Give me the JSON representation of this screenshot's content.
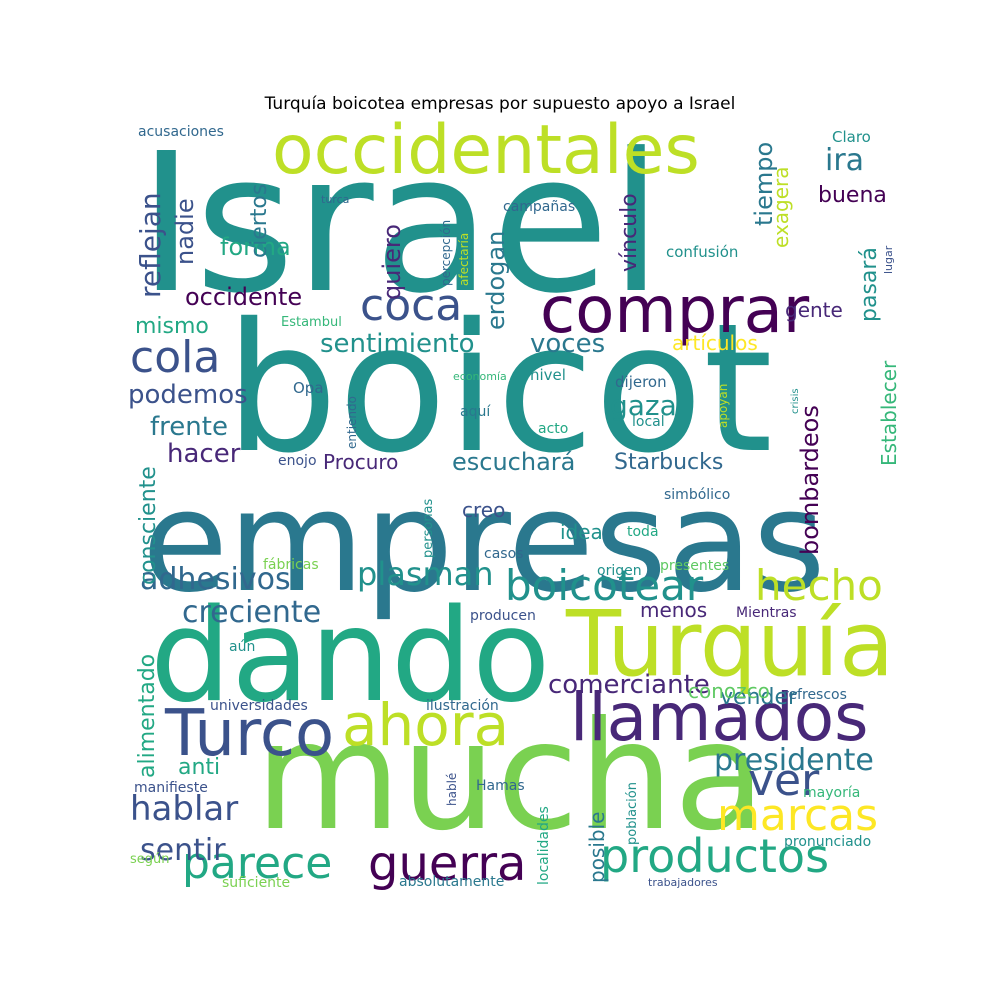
{
  "title": "Turquía boicotea empresas por supuesto apoyo a Israel",
  "palette": {
    "teal": "#21918c",
    "teal_dark": "#2a788e",
    "green": "#22a884",
    "green_light": "#7ad151",
    "lime": "#bddf26",
    "yellow": "#fde725",
    "purple": "#440154",
    "indigo": "#3b528b",
    "blue": "#31688e",
    "violet": "#482878",
    "mint": "#5ec962",
    "seafoam": "#35b779"
  },
  "words": [
    {
      "text": "Israel",
      "color": "teal",
      "vertical": false
    },
    {
      "text": "boicot",
      "color": "teal",
      "vertical": false
    },
    {
      "text": "empresas",
      "color": "teal_dark",
      "vertical": false
    },
    {
      "text": "mucha",
      "color": "green_light",
      "vertical": false
    },
    {
      "text": "dando",
      "color": "green",
      "vertical": false
    },
    {
      "text": "Turquía",
      "color": "lime",
      "vertical": false
    },
    {
      "text": "occidentales",
      "color": "lime",
      "vertical": false
    },
    {
      "text": "comprar",
      "color": "purple",
      "vertical": false
    },
    {
      "text": "llamados",
      "color": "violet",
      "vertical": false
    },
    {
      "text": "Turco",
      "color": "indigo",
      "vertical": false
    },
    {
      "text": "ahora",
      "color": "lime",
      "vertical": false
    },
    {
      "text": "productos",
      "color": "green",
      "vertical": false
    },
    {
      "text": "guerra",
      "color": "purple",
      "vertical": false
    },
    {
      "text": "parece",
      "color": "green",
      "vertical": false
    },
    {
      "text": "boicotear",
      "color": "teal",
      "vertical": false
    },
    {
      "text": "hecho",
      "color": "lime",
      "vertical": false
    },
    {
      "text": "coca",
      "color": "indigo",
      "vertical": false
    },
    {
      "text": "cola",
      "color": "indigo",
      "vertical": false
    },
    {
      "text": "marcas",
      "color": "yellow",
      "vertical": false
    },
    {
      "text": "ver",
      "color": "indigo",
      "vertical": false
    },
    {
      "text": "hablar",
      "color": "indigo",
      "vertical": false
    },
    {
      "text": "sentir",
      "color": "indigo",
      "vertical": false
    },
    {
      "text": "plasman",
      "color": "teal",
      "vertical": false
    },
    {
      "text": "adhesivos",
      "color": "blue",
      "vertical": false
    },
    {
      "text": "creciente",
      "color": "blue",
      "vertical": false
    },
    {
      "text": "presidente",
      "color": "teal_dark",
      "vertical": false
    },
    {
      "text": "comerciante",
      "color": "violet",
      "vertical": false
    },
    {
      "text": "sentimiento",
      "color": "teal",
      "vertical": false
    },
    {
      "text": "voces",
      "color": "teal_dark",
      "vertical": false
    },
    {
      "text": "gaza",
      "color": "teal",
      "vertical": false
    },
    {
      "text": "podemos",
      "color": "indigo",
      "vertical": false
    },
    {
      "text": "frente",
      "color": "teal_dark",
      "vertical": false
    },
    {
      "text": "hacer",
      "color": "violet",
      "vertical": false
    },
    {
      "text": "occidente",
      "color": "purple",
      "vertical": false
    },
    {
      "text": "mismo",
      "color": "green",
      "vertical": false
    },
    {
      "text": "forma",
      "color": "green",
      "vertical": false
    },
    {
      "text": "ira",
      "color": "teal_dark",
      "vertical": false
    },
    {
      "text": "buena",
      "color": "purple",
      "vertical": false
    },
    {
      "text": "escuchará",
      "color": "teal_dark",
      "vertical": false
    },
    {
      "text": "Starbucks",
      "color": "blue",
      "vertical": false
    },
    {
      "text": "Procuro",
      "color": "violet",
      "vertical": false
    },
    {
      "text": "artículos",
      "color": "yellow",
      "vertical": false
    },
    {
      "text": "anti",
      "color": "green",
      "vertical": false
    },
    {
      "text": "vender",
      "color": "teal_dark",
      "vertical": false
    },
    {
      "text": "conozco",
      "color": "mint",
      "vertical": false
    },
    {
      "text": "menos",
      "color": "violet",
      "vertical": false
    },
    {
      "text": "idea",
      "color": "teal",
      "vertical": false
    },
    {
      "text": "creo",
      "color": "indigo",
      "vertical": false
    },
    {
      "text": "gente",
      "color": "violet",
      "vertical": false
    },
    {
      "text": "acusaciones",
      "color": "blue",
      "vertical": false
    },
    {
      "text": "Claro",
      "color": "teal",
      "vertical": false
    },
    {
      "text": "turca",
      "color": "blue",
      "vertical": false
    },
    {
      "text": "campañas",
      "color": "blue",
      "vertical": false
    },
    {
      "text": "confusión",
      "color": "teal",
      "vertical": false
    },
    {
      "text": "Estambul",
      "color": "seafoam",
      "vertical": false
    },
    {
      "text": "economía",
      "color": "seafoam",
      "vertical": false
    },
    {
      "text": "nivel",
      "color": "teal",
      "vertical": false
    },
    {
      "text": "dijeron",
      "color": "blue",
      "vertical": false
    },
    {
      "text": "Opa",
      "color": "blue",
      "vertical": false
    },
    {
      "text": "aquí",
      "color": "teal_dark",
      "vertical": false
    },
    {
      "text": "acto",
      "color": "green",
      "vertical": false
    },
    {
      "text": "local",
      "color": "teal",
      "vertical": false
    },
    {
      "text": "enojo",
      "color": "indigo",
      "vertical": false
    },
    {
      "text": "simbólico",
      "color": "blue",
      "vertical": false
    },
    {
      "text": "toda",
      "color": "green",
      "vertical": false
    },
    {
      "text": "casos",
      "color": "blue",
      "vertical": false
    },
    {
      "text": "fábricas",
      "color": "green_light",
      "vertical": false
    },
    {
      "text": "origen",
      "color": "teal",
      "vertical": false
    },
    {
      "text": "presentes",
      "color": "mint",
      "vertical": false
    },
    {
      "text": "producen",
      "color": "indigo",
      "vertical": false
    },
    {
      "text": "Mientras",
      "color": "violet",
      "vertical": false
    },
    {
      "text": "aún",
      "color": "teal",
      "vertical": false
    },
    {
      "text": "universidades",
      "color": "indigo",
      "vertical": false
    },
    {
      "text": "ilustración",
      "color": "blue",
      "vertical": false
    },
    {
      "text": "refrescos",
      "color": "blue",
      "vertical": false
    },
    {
      "text": "manifieste",
      "color": "indigo",
      "vertical": false
    },
    {
      "text": "Hamas",
      "color": "blue",
      "vertical": false
    },
    {
      "text": "mayoría",
      "color": "seafoam",
      "vertical": false
    },
    {
      "text": "según",
      "color": "green_light",
      "vertical": false
    },
    {
      "text": "pronunciado",
      "color": "teal",
      "vertical": false
    },
    {
      "text": "suficiente",
      "color": "green_light",
      "vertical": false
    },
    {
      "text": "absolutamente",
      "color": "teal_dark",
      "vertical": false
    },
    {
      "text": "trabajadores",
      "color": "indigo",
      "vertical": false
    },
    {
      "text": "reflejan",
      "color": "indigo",
      "vertical": true
    },
    {
      "text": "nadie",
      "color": "indigo",
      "vertical": true
    },
    {
      "text": "ciertos",
      "color": "teal_dark",
      "vertical": true
    },
    {
      "text": "quiero",
      "color": "violet",
      "vertical": true
    },
    {
      "text": "erdogan",
      "color": "teal_dark",
      "vertical": true
    },
    {
      "text": "percepción",
      "color": "blue",
      "vertical": true
    },
    {
      "text": "afectaría",
      "color": "lime",
      "vertical": true
    },
    {
      "text": "vínculo",
      "color": "violet",
      "vertical": true
    },
    {
      "text": "tiempo",
      "color": "teal_dark",
      "vertical": true
    },
    {
      "text": "exagera",
      "color": "lime",
      "vertical": true
    },
    {
      "text": "pasará",
      "color": "teal",
      "vertical": true
    },
    {
      "text": "lugar",
      "color": "indigo",
      "vertical": true
    },
    {
      "text": "Establecer",
      "color": "seafoam",
      "vertical": true
    },
    {
      "text": "bombardeos",
      "color": "purple",
      "vertical": true
    },
    {
      "text": "entiendo",
      "color": "blue",
      "vertical": true
    },
    {
      "text": "apoyan",
      "color": "lime",
      "vertical": true
    },
    {
      "text": "crisis",
      "color": "teal",
      "vertical": true
    },
    {
      "text": "consciente",
      "color": "teal",
      "vertical": true
    },
    {
      "text": "personas",
      "color": "teal",
      "vertical": true
    },
    {
      "text": "alimentado",
      "color": "green",
      "vertical": true
    },
    {
      "text": "posible",
      "color": "teal_dark",
      "vertical": true
    },
    {
      "text": "localidades",
      "color": "green",
      "vertical": true
    },
    {
      "text": "población",
      "color": "teal",
      "vertical": true
    },
    {
      "text": "hablé",
      "color": "indigo",
      "vertical": true
    }
  ]
}
